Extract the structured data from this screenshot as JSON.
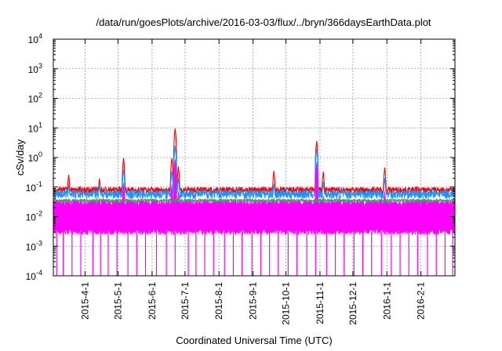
{
  "chart_data": {
    "type": "line",
    "title": "/data/run/goesPlots/archive/2016-03-03/flux/../bryn/366daysEarthData.plot",
    "xlabel": "Coordinated Universal Time (UTC)",
    "ylabel": "cSv/day",
    "xlim": [
      "2015-03-03",
      "2016-03-03"
    ],
    "ylim": [
      0.0001,
      10000
    ],
    "yscale": "log",
    "grid": true,
    "x_ticks": [
      {
        "date": "2015-04-01",
        "label": "2015-4-1"
      },
      {
        "date": "2015-05-01",
        "label": "2015-5-1"
      },
      {
        "date": "2015-06-01",
        "label": "2015-6-1"
      },
      {
        "date": "2015-07-01",
        "label": "2015-7-1"
      },
      {
        "date": "2015-08-01",
        "label": "2015-8-1"
      },
      {
        "date": "2015-09-01",
        "label": "2015-9-1"
      },
      {
        "date": "2015-10-01",
        "label": "2015-10-1"
      },
      {
        "date": "2015-11-01",
        "label": "2015-11-1"
      },
      {
        "date": "2015-12-01",
        "label": "2015-12-1"
      },
      {
        "date": "2016-01-01",
        "label": "2016-1-1"
      },
      {
        "date": "2016-02-01",
        "label": "2016-2-1"
      }
    ],
    "y_ticks": [
      {
        "value": 0.0001,
        "base": "10",
        "exp": "-4"
      },
      {
        "value": 0.001,
        "base": "10",
        "exp": "-3"
      },
      {
        "value": 0.01,
        "base": "10",
        "exp": "-2"
      },
      {
        "value": 0.1,
        "base": "10",
        "exp": "-1"
      },
      {
        "value": 1,
        "base": "10",
        "exp": "0"
      },
      {
        "value": 10,
        "base": "10",
        "exp": "1"
      },
      {
        "value": 100,
        "base": "10",
        "exp": "2"
      },
      {
        "value": 1000,
        "base": "10",
        "exp": "3"
      },
      {
        "value": 10000,
        "base": "10",
        "exp": "4"
      }
    ],
    "series": [
      {
        "color": "#ff00ff",
        "baseline_range": [
          0.003,
          0.03
        ],
        "dropout_min": 0.0001,
        "dropout_dates": [
          "2015-03-06",
          "2015-03-12",
          "2015-03-20",
          "2015-03-28",
          "2015-04-08",
          "2015-04-15",
          "2015-04-22",
          "2015-04-30",
          "2015-05-10",
          "2015-05-18",
          "2015-05-26",
          "2015-06-05",
          "2015-06-14",
          "2015-06-22",
          "2015-07-04",
          "2015-07-11",
          "2015-07-19",
          "2015-07-27",
          "2015-08-06",
          "2015-08-14",
          "2015-08-22",
          "2015-08-31",
          "2015-09-08",
          "2015-09-16",
          "2015-09-24",
          "2015-10-03",
          "2015-10-11",
          "2015-10-20",
          "2015-10-28",
          "2015-11-07",
          "2015-11-15",
          "2015-11-23",
          "2015-12-02",
          "2015-12-10",
          "2015-12-18",
          "2015-12-27",
          "2016-01-05",
          "2016-01-13",
          "2016-01-21",
          "2016-01-29",
          "2016-02-07",
          "2016-02-15",
          "2016-02-23",
          "2016-03-01"
        ]
      },
      {
        "color": "#1e90ff",
        "baseline_range": [
          0.04,
          0.08
        ]
      },
      {
        "color": "#ff0000",
        "baseline_range": [
          0.06,
          0.1
        ]
      }
    ],
    "peaks": [
      {
        "date": "2015-03-17",
        "red": 0.26,
        "blue": 0.12
      },
      {
        "date": "2015-04-14",
        "red": 0.19,
        "blue": 0.12
      },
      {
        "date": "2015-05-06",
        "red": 0.95,
        "blue": 0.4
      },
      {
        "date": "2015-06-19",
        "red": 0.95,
        "blue": 0.35
      },
      {
        "date": "2015-06-22",
        "red": 9.5,
        "blue": 2.5
      },
      {
        "date": "2015-06-25",
        "red": 0.5,
        "blue": 0.2
      },
      {
        "date": "2015-09-20",
        "red": 0.35,
        "blue": 0.13
      },
      {
        "date": "2015-10-29",
        "red": 3.6,
        "blue": 2.0
      },
      {
        "date": "2015-11-04",
        "red": 0.33,
        "blue": 0.15
      },
      {
        "date": "2015-12-30",
        "red": 0.45,
        "blue": 0.2
      }
    ]
  }
}
